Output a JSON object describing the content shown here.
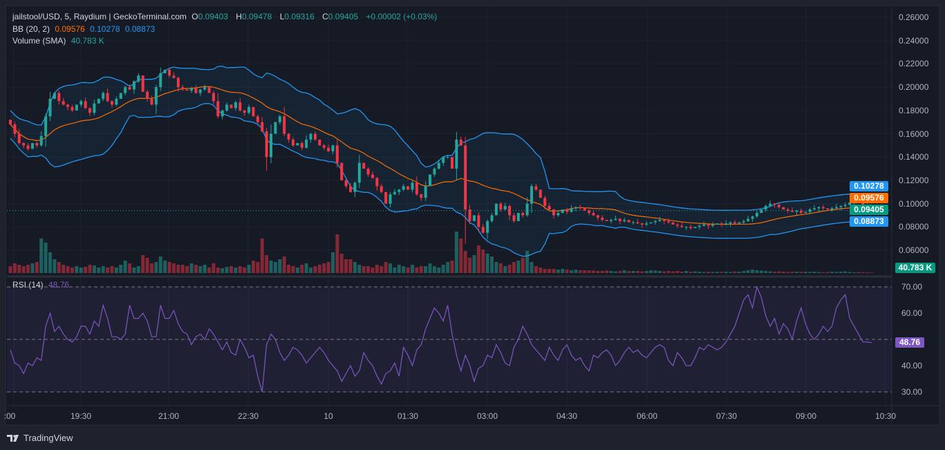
{
  "header": {
    "symbol": "jailstool/USD, 5, Raydium | GeckoTerminal.com",
    "o_label": "O",
    "o": "0.09403",
    "h_label": "H",
    "h": "0.09478",
    "l_label": "L",
    "l": "0.09316",
    "c_label": "C",
    "c": "0.09405",
    "change": "+0.00002 (+0.03%)"
  },
  "bb": {
    "label": "BB (20, 2)",
    "basis": "0.09576",
    "upper": "0.10278",
    "lower": "0.08873"
  },
  "volume": {
    "label": "Volume (SMA)",
    "value": "40.783 K"
  },
  "rsi": {
    "label": "RSI (14)",
    "value": "48.76"
  },
  "brand": "TradingView",
  "colors": {
    "up": "#26a69a",
    "down": "#f23645",
    "bb_basis": "#ff6d00",
    "bb_band": "#2196f3",
    "rsi": "#7e57c2"
  },
  "chart_data": {
    "type": "candlestick",
    "interval_minutes": 5,
    "first_candle_time": "18:10",
    "price_axis": {
      "ticks": [
        "0.26000",
        "0.24000",
        "0.22000",
        "0.20000",
        "0.18000",
        "0.16000",
        "0.14000",
        "0.12000",
        "0.10000",
        "0.08000",
        "0.06000"
      ],
      "range": [
        0.05,
        0.265
      ]
    },
    "time_axis": {
      "ticks": [
        ":00",
        "19:30",
        "21:00",
        "22:30",
        "10",
        "01:30",
        "03:00",
        "04:30",
        "06:00",
        "07:30",
        "09:00",
        "10:30"
      ]
    },
    "price_tags": {
      "upper": "0.10278",
      "basis": "0.09576",
      "last": "0.09405",
      "lower": "0.08873",
      "volume_sma": "40.783 K"
    },
    "close": [
      0.168,
      0.16,
      0.152,
      0.15,
      0.147,
      0.152,
      0.15,
      0.158,
      0.175,
      0.19,
      0.195,
      0.188,
      0.185,
      0.183,
      0.18,
      0.185,
      0.188,
      0.182,
      0.178,
      0.186,
      0.19,
      0.195,
      0.188,
      0.185,
      0.19,
      0.195,
      0.2,
      0.198,
      0.205,
      0.21,
      0.196,
      0.19,
      0.185,
      0.2,
      0.212,
      0.215,
      0.21,
      0.208,
      0.2,
      0.198,
      0.197,
      0.199,
      0.195,
      0.198,
      0.2,
      0.195,
      0.188,
      0.175,
      0.18,
      0.185,
      0.182,
      0.187,
      0.18,
      0.178,
      0.183,
      0.175,
      0.17,
      0.162,
      0.14,
      0.16,
      0.17,
      0.175,
      0.16,
      0.155,
      0.15,
      0.152,
      0.148,
      0.155,
      0.16,
      0.155,
      0.15,
      0.148,
      0.145,
      0.15,
      0.135,
      0.12,
      0.115,
      0.11,
      0.118,
      0.135,
      0.13,
      0.125,
      0.122,
      0.115,
      0.11,
      0.1,
      0.108,
      0.11,
      0.112,
      0.115,
      0.112,
      0.118,
      0.108,
      0.105,
      0.115,
      0.125,
      0.13,
      0.135,
      0.14,
      0.14,
      0.13,
      0.155,
      0.15,
      0.095,
      0.085,
      0.09,
      0.08,
      0.075,
      0.085,
      0.09,
      0.1,
      0.095,
      0.098,
      0.09,
      0.085,
      0.092,
      0.09,
      0.1,
      0.115,
      0.112,
      0.105,
      0.098,
      0.095,
      0.09,
      0.092,
      0.095,
      0.093,
      0.096,
      0.097,
      0.096,
      0.094,
      0.092,
      0.09,
      0.088,
      0.086,
      0.085,
      0.086,
      0.087,
      0.085,
      0.086,
      0.084,
      0.084,
      0.083,
      0.082,
      0.083,
      0.084,
      0.085,
      0.086,
      0.085,
      0.084,
      0.082,
      0.081,
      0.08,
      0.08,
      0.079,
      0.08,
      0.081,
      0.082,
      0.081,
      0.082,
      0.083,
      0.082,
      0.083,
      0.084,
      0.083,
      0.084,
      0.085,
      0.087,
      0.089,
      0.092,
      0.095,
      0.098,
      0.1,
      0.099,
      0.097,
      0.095,
      0.094,
      0.093,
      0.094,
      0.092,
      0.093,
      0.095,
      0.096,
      0.097,
      0.096,
      0.095,
      0.096,
      0.097,
      0.098,
      0.099,
      0.101,
      0.103,
      0.101,
      0.098,
      0.096,
      0.09405
    ],
    "volume_k": [
      50,
      70,
      60,
      50,
      60,
      70,
      80,
      250,
      220,
      150,
      100,
      80,
      60,
      50,
      40,
      50,
      40,
      45,
      60,
      55,
      40,
      50,
      40,
      50,
      40,
      60,
      90,
      70,
      40,
      50,
      130,
      110,
      70,
      80,
      120,
      90,
      80,
      70,
      60,
      60,
      50,
      70,
      60,
      50,
      60,
      40,
      70,
      40,
      35,
      45,
      50,
      40,
      50,
      40,
      60,
      90,
      80,
      250,
      130,
      90,
      80,
      100,
      120,
      60,
      50,
      40,
      60,
      70,
      40,
      50,
      60,
      70,
      80,
      150,
      280,
      140,
      100,
      100,
      80,
      60,
      50,
      50,
      40,
      60,
      50,
      80,
      70,
      40,
      60,
      50,
      40,
      60,
      40,
      50,
      50,
      70,
      50,
      40,
      60,
      80,
      90,
      300,
      250,
      160,
      110,
      130,
      200,
      170,
      140,
      120,
      80,
      70,
      50,
      60,
      80,
      90,
      110,
      160,
      80,
      50,
      40,
      30,
      30,
      30,
      25,
      30,
      25,
      20,
      25,
      20,
      20,
      20,
      18,
      15,
      15,
      18,
      15,
      12,
      15,
      20,
      15,
      15,
      15,
      12,
      15,
      20,
      18,
      15,
      12,
      15,
      12,
      15,
      10,
      15,
      10,
      12,
      10,
      8,
      10,
      8,
      10,
      8,
      10,
      8,
      12,
      10,
      15,
      20,
      25,
      20,
      18,
      15,
      12,
      10,
      12,
      10,
      8,
      10,
      10,
      8,
      10,
      8,
      10,
      8,
      6,
      8,
      10,
      8,
      10,
      12,
      8,
      6,
      8,
      6,
      5,
      4
    ],
    "rsi_axis": {
      "ticks": [
        "70.00",
        "60.00",
        "40.00",
        "30.00"
      ],
      "levels": [
        70,
        50,
        30
      ],
      "range": [
        26,
        74
      ]
    },
    "rsi": [
      46,
      41,
      40,
      37,
      41,
      40,
      43,
      42,
      55,
      60,
      53,
      55,
      52,
      50,
      49,
      51,
      55,
      55,
      52,
      57,
      55,
      63,
      58,
      51,
      51,
      50,
      52,
      63,
      58,
      58,
      60,
      57,
      51,
      51,
      63,
      58,
      58,
      61,
      56,
      53,
      52,
      48,
      51,
      52,
      50,
      54,
      52,
      49,
      46,
      49,
      45,
      44,
      50,
      47,
      43,
      44,
      36,
      30,
      48,
      52,
      50,
      45,
      42,
      44,
      47,
      46,
      44,
      41,
      43,
      45,
      47,
      45,
      42,
      40,
      38,
      34,
      37,
      40,
      36,
      38,
      45,
      42,
      40,
      36,
      33,
      37,
      38,
      41,
      36,
      47,
      44,
      40,
      46,
      48,
      54,
      58,
      62,
      60,
      57,
      63,
      52,
      44,
      38,
      44,
      40,
      34,
      39,
      40,
      44,
      43,
      48,
      45,
      41,
      40,
      47,
      50,
      55,
      52,
      48,
      46,
      44,
      42,
      47,
      44,
      42,
      46,
      48,
      44,
      42,
      43,
      40,
      38,
      44,
      43,
      45,
      46,
      44,
      40,
      42,
      45,
      47,
      45,
      46,
      44,
      43,
      45,
      47,
      48,
      47,
      42,
      40,
      45,
      43,
      40,
      40,
      43,
      47,
      46,
      48,
      47,
      46,
      47,
      49,
      52,
      55,
      60,
      65,
      67,
      62,
      70,
      66,
      59,
      55,
      58,
      52,
      56,
      54,
      50,
      57,
      62,
      56,
      52,
      50,
      52,
      55,
      53,
      55,
      62,
      65,
      67,
      58,
      55,
      52,
      49,
      49,
      48.76
    ]
  }
}
